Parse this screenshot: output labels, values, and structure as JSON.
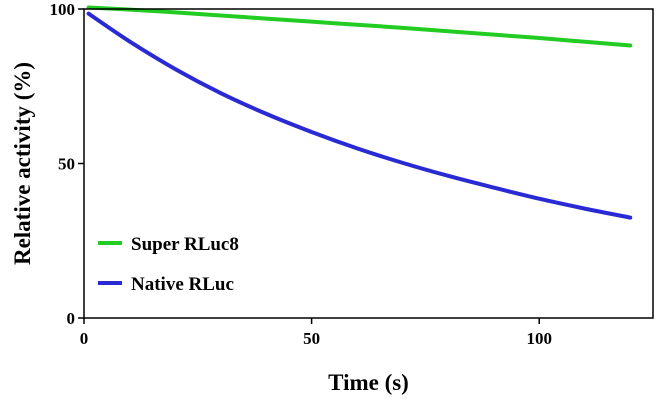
{
  "chart_data": {
    "type": "line",
    "title": "",
    "xlabel": "Time (s)",
    "ylabel": "Relative activity (%)",
    "xlim": [
      0,
      125
    ],
    "ylim": [
      0,
      100
    ],
    "x_ticks": [
      "0",
      "50",
      "100"
    ],
    "y_ticks": [
      "0",
      "50",
      "100"
    ],
    "grid": false,
    "legend_position": "bottom-left",
    "series": [
      {
        "name": "Super RLuc8",
        "color": "#22cc22",
        "x": [
          1,
          10,
          20,
          30,
          40,
          50,
          60,
          70,
          80,
          90,
          100,
          110,
          120
        ],
        "y": [
          100.5,
          99.8,
          98.9,
          97.9,
          96.9,
          95.9,
          94.9,
          93.9,
          92.8,
          91.7,
          90.6,
          89.4,
          88.2
        ]
      },
      {
        "name": "Native RLuc",
        "color": "#2a2ad4",
        "x": [
          1,
          10,
          20,
          30,
          40,
          50,
          60,
          70,
          80,
          90,
          100,
          110,
          120
        ],
        "y": [
          98.5,
          89.5,
          80.6,
          72.8,
          66.1,
          60.2,
          54.9,
          50.2,
          46.0,
          42.2,
          38.6,
          35.4,
          32.5
        ]
      }
    ]
  }
}
